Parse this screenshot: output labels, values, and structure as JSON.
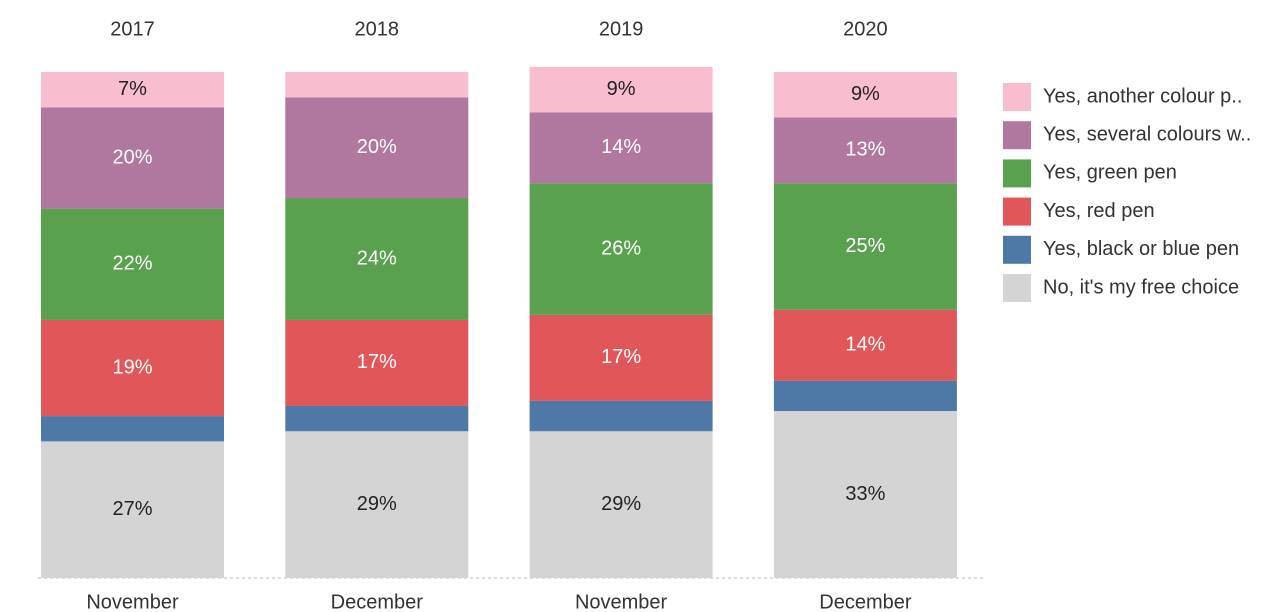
{
  "chart_data": {
    "type": "stacked_bar",
    "years": [
      "2017",
      "2018",
      "2019",
      "2020"
    ],
    "categories": [
      "November",
      "December",
      "November",
      "December"
    ],
    "ylim": [
      0,
      100
    ],
    "series": [
      {
        "name": "Yes, another colour p..",
        "color": "#f9bdd0",
        "label_color": "#222222",
        "values": [
          7,
          5,
          9,
          9
        ],
        "value_labels": [
          "7%",
          null,
          "9%",
          "9%"
        ]
      },
      {
        "name": "Yes, several colours w..",
        "color": "#b0779f",
        "label_color": "#ffffff",
        "values": [
          20,
          20,
          14,
          13
        ],
        "value_labels": [
          "20%",
          "20%",
          "14%",
          "13%"
        ]
      },
      {
        "name": "Yes, green pen",
        "color": "#59a14f",
        "label_color": "#ffffff",
        "values": [
          22,
          24,
          26,
          25
        ],
        "value_labels": [
          "22%",
          "24%",
          "26%",
          "25%"
        ]
      },
      {
        "name": "Yes, red pen",
        "color": "#e15759",
        "label_color": "#ffffff",
        "values": [
          19,
          17,
          17,
          14
        ],
        "value_labels": [
          "19%",
          "17%",
          "17%",
          "14%"
        ]
      },
      {
        "name": "Yes, black or blue pen",
        "color": "#4e79a7",
        "label_color": "#ffffff",
        "values": [
          5,
          5,
          6,
          6
        ],
        "value_labels": [
          null,
          null,
          null,
          null
        ]
      },
      {
        "name": "No, it's my free choice",
        "color": "#d4d4d4",
        "label_color": "#222222",
        "values": [
          27,
          29,
          29,
          33
        ],
        "value_labels": [
          "27%",
          "29%",
          "29%",
          "33%"
        ]
      }
    ]
  }
}
